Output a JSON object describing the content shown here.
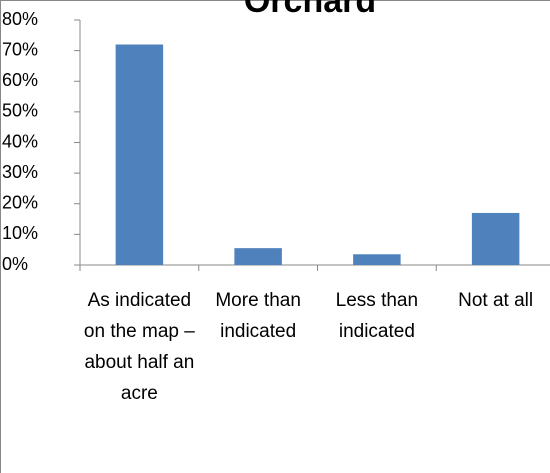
{
  "chart_data": {
    "type": "bar",
    "title": "Orchard",
    "categories": [
      "As indicated on the map – about half an acre",
      "More than indicated",
      "Less than indicated",
      "Not at all"
    ],
    "values": [
      72,
      5.5,
      3.5,
      17
    ],
    "color": "#4f81bd",
    "ylim": [
      0,
      80
    ],
    "yticks": [
      {
        "value": 0,
        "label": "0%"
      },
      {
        "value": 10,
        "label": "10%"
      },
      {
        "value": 20,
        "label": "20%"
      },
      {
        "value": 30,
        "label": "30%"
      },
      {
        "value": 40,
        "label": "40%"
      },
      {
        "value": 50,
        "label": "50%"
      },
      {
        "value": 60,
        "label": "60%"
      },
      {
        "value": 70,
        "label": "70%"
      },
      {
        "value": 80,
        "label": "80%"
      }
    ],
    "grid": false
  }
}
